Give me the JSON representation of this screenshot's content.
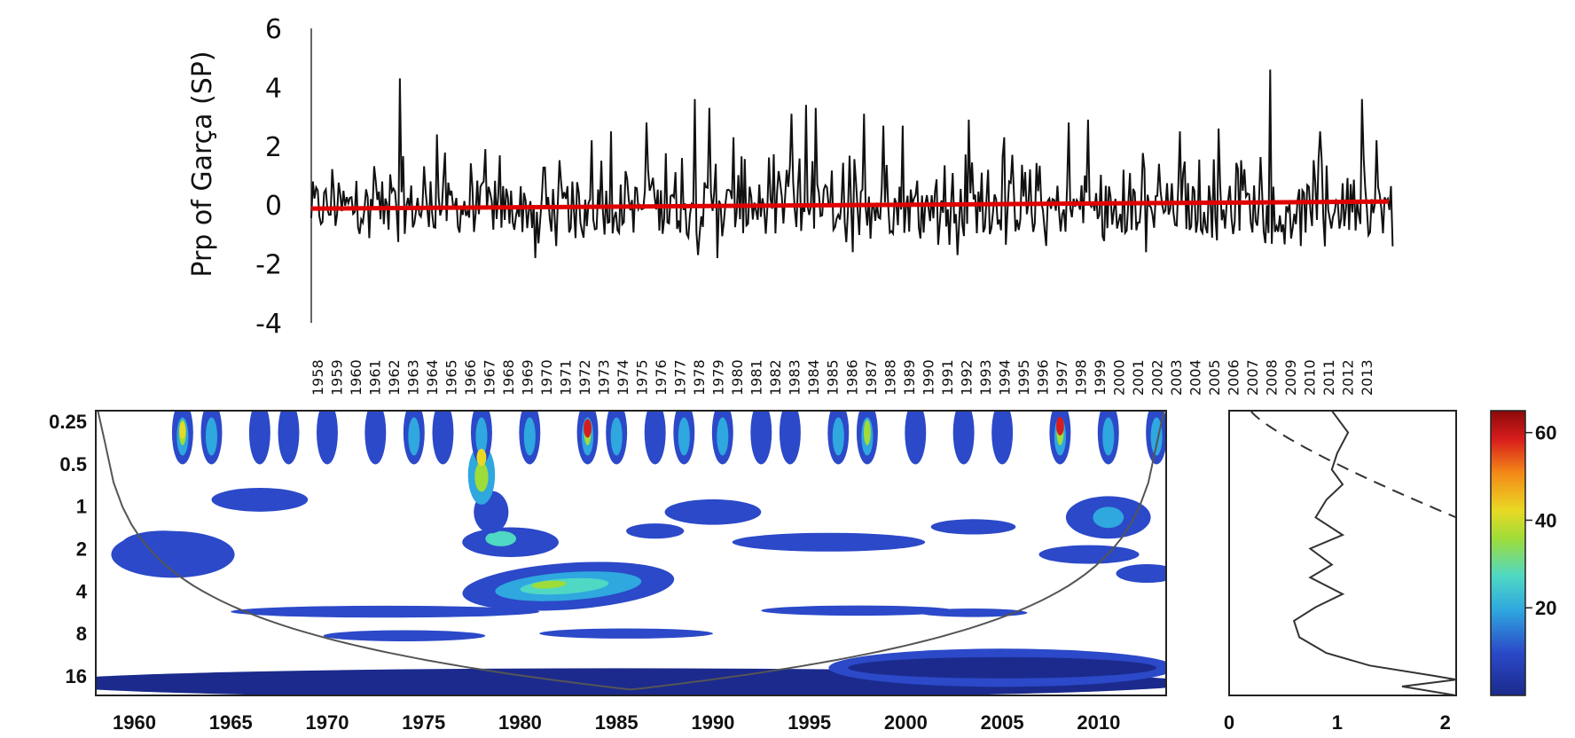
{
  "chart_data": [
    {
      "type": "line",
      "ylabel": "Prp of  Garça (SP)",
      "ylim": [
        -4,
        6
      ],
      "yticks": [
        "6",
        "4",
        "2",
        "0",
        "-2",
        "-4"
      ],
      "x_tick_labels": [
        "1958",
        "1959",
        "1960",
        "1961",
        "1962",
        "1963",
        "1964",
        "1965",
        "1966",
        "1967",
        "1968",
        "1969",
        "1970",
        "1971",
        "1972",
        "1973",
        "1974",
        "1975",
        "1976",
        "1977",
        "1978",
        "1979",
        "1980",
        "1981",
        "1982",
        "1983",
        "1984",
        "1985",
        "1986",
        "1987",
        "1988",
        "1989",
        "1990",
        "1991",
        "1992",
        "1993",
        "1994",
        "1995",
        "1996",
        "1997",
        "1998",
        "1999",
        "2000",
        "2001",
        "2002",
        "2003",
        "2004",
        "2005",
        "2006",
        "2007",
        "2008",
        "2009",
        "2010",
        "2011",
        "2012",
        "2013"
      ],
      "x_range": [
        1958,
        2013.9
      ],
      "series": [
        {
          "color": "#111111",
          "description_values": "monthly standardized precipitation anomalies, mostly between -1.8 and 1.5",
          "peaks": [
            {
              "x": 1962.6,
              "y": 4.3
            },
            {
              "x": 1964.5,
              "y": 2.4
            },
            {
              "x": 1967.0,
              "y": 1.9
            },
            {
              "x": 1972.5,
              "y": 2.2
            },
            {
              "x": 1973.5,
              "y": 2.5
            },
            {
              "x": 1975.3,
              "y": 2.8
            },
            {
              "x": 1977.8,
              "y": 3.6
            },
            {
              "x": 1978.6,
              "y": 3.3
            },
            {
              "x": 1979.8,
              "y": 2.3
            },
            {
              "x": 1982.8,
              "y": 3.1
            },
            {
              "x": 1983.6,
              "y": 3.4
            },
            {
              "x": 1984.1,
              "y": 3.3
            },
            {
              "x": 1986.6,
              "y": 3.1
            },
            {
              "x": 1987.6,
              "y": 2.7
            },
            {
              "x": 1988.6,
              "y": 2.7
            },
            {
              "x": 1992.0,
              "y": 2.9
            },
            {
              "x": 1993.8,
              "y": 2.3
            },
            {
              "x": 1997.2,
              "y": 2.8
            },
            {
              "x": 1998.2,
              "y": 2.9
            },
            {
              "x": 2002.9,
              "y": 2.5
            },
            {
              "x": 2004.9,
              "y": 2.6
            },
            {
              "x": 2007.6,
              "y": 4.6
            },
            {
              "x": 2010.2,
              "y": 2.5
            },
            {
              "x": 2012.3,
              "y": 3.6
            },
            {
              "x": 2013.1,
              "y": 2.2
            }
          ],
          "troughs": [
            {
              "x": 1969.6,
              "y": -1.8
            },
            {
              "x": 1978.0,
              "y": -1.7
            },
            {
              "x": 1979.0,
              "y": -1.8
            },
            {
              "x": 1986.0,
              "y": -1.6
            },
            {
              "x": 1991.4,
              "y": -1.7
            },
            {
              "x": 2001.2,
              "y": -1.6
            },
            {
              "x": 2010.4,
              "y": -1.4
            },
            {
              "x": 2013.9,
              "y": -1.4
            }
          ]
        },
        {
          "color": "#e00000",
          "trend_start": -0.12,
          "trend_end": 0.12
        }
      ]
    },
    {
      "type": "heatmap",
      "x_tick_labels": [
        "1960",
        "1965",
        "1970",
        "1975",
        "1980",
        "1985",
        "1990",
        "1995",
        "2000",
        "2005",
        "2010"
      ],
      "x_range": [
        1958,
        2013.5
      ],
      "y_tick_labels": [
        "0.25",
        "0.5",
        "1",
        "2",
        "4",
        "8",
        "16"
      ],
      "y_scale": "log2",
      "ylim": [
        0.21,
        22
      ],
      "colormap": [
        "#1b2a8c",
        "#2b49c8",
        "#2fa7df",
        "#4fd8c3",
        "#9edc3a",
        "#e9d924",
        "#f48a18",
        "#d81c1c",
        "#8c0a0a"
      ],
      "features": [
        {
          "x": 1982,
          "period": 3.5,
          "power": 40,
          "label": "strongest band 1979-1987, 2.5-5 yr"
        },
        {
          "x": 1983.5,
          "period": 0.3,
          "power": 62,
          "label": "peak power"
        },
        {
          "x": 2008,
          "period": 0.3,
          "power": 58
        },
        {
          "x": 1962.5,
          "period": 0.3,
          "power": 35
        },
        {
          "x": 1978,
          "period": 0.6,
          "power": 30
        },
        {
          "x": 2010.5,
          "period": 1.2,
          "power": 22
        }
      ],
      "cone_of_influence": true
    },
    {
      "type": "line",
      "x_tick_labels": [
        "0",
        "1",
        "2"
      ],
      "xlim": [
        0,
        2.1
      ],
      "series": [
        {
          "style": "solid",
          "description_values": "global wavelet power spectrum"
        },
        {
          "style": "dashed",
          "description_values": "significance level"
        }
      ]
    },
    {
      "type": "colorbar",
      "tick_labels": [
        "60",
        "40",
        "20"
      ],
      "range": [
        0,
        65
      ]
    }
  ]
}
